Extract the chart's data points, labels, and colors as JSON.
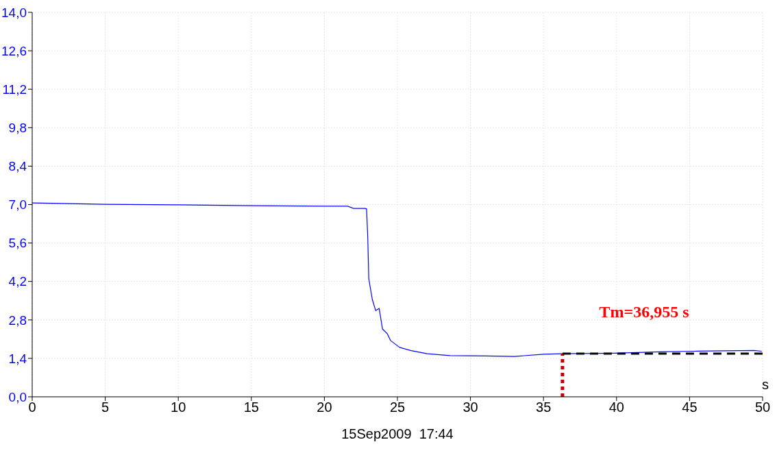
{
  "chart_data": {
    "type": "line",
    "xlabel": "s",
    "annotations": [
      "Tm=36,955 s",
      "15Sep2009  17:44"
    ],
    "xlim": [
      0,
      50
    ],
    "xticks": [
      0,
      5,
      10,
      15,
      20,
      25,
      30,
      35,
      40,
      45,
      50
    ],
    "ylim": [
      0,
      14
    ],
    "yticks": [
      {
        "value": 0,
        "label": "0,0"
      },
      {
        "value": 1.4,
        "label": "1,4"
      },
      {
        "value": 2.8,
        "label": "2,8"
      },
      {
        "value": 4.2,
        "label": "4,2"
      },
      {
        "value": 5.6,
        "label": "5,6"
      },
      {
        "value": 7,
        "label": "7,0"
      },
      {
        "value": 8.4,
        "label": "8,4"
      },
      {
        "value": 9.8,
        "label": "9,8"
      },
      {
        "value": 11.2,
        "label": "11,2"
      },
      {
        "value": 12.6,
        "label": "12,6"
      },
      {
        "value": 14,
        "label": "14,0"
      }
    ],
    "grid": true,
    "marker": "none",
    "series": [
      {
        "color": "#0000ff",
        "line_style": "solid",
        "x": [
          0,
          2,
          5,
          10,
          15,
          20,
          21.6,
          22,
          22.8,
          22.89,
          22.97,
          23.04,
          23.28,
          23.51,
          23.75,
          23.98,
          24.3,
          24.53,
          25.15,
          25.94,
          27.03,
          28.6,
          31,
          33,
          35,
          36.3,
          39.85,
          42.97,
          45.3,
          49.4,
          49.94
        ],
        "values": [
          7.06,
          7.04,
          7.01,
          6.99,
          6.96,
          6.94,
          6.94,
          6.86,
          6.86,
          6.84,
          5.8,
          4.3,
          3.55,
          3.14,
          3.22,
          2.47,
          2.3,
          2.05,
          1.8,
          1.68,
          1.57,
          1.5,
          1.49,
          1.47,
          1.55,
          1.57,
          1.59,
          1.64,
          1.66,
          1.69,
          1.66
        ]
      },
      {
        "type": "line",
        "color": "#c00000",
        "line_style": "dotted",
        "x": [
          36.3,
          36.3
        ],
        "values": [
          0,
          1.57
        ]
      },
      {
        "type": "line",
        "color": "#000000",
        "line_style": "dashed",
        "x": [
          36.3,
          50
        ],
        "values": [
          1.57,
          1.57
        ]
      }
    ]
  }
}
